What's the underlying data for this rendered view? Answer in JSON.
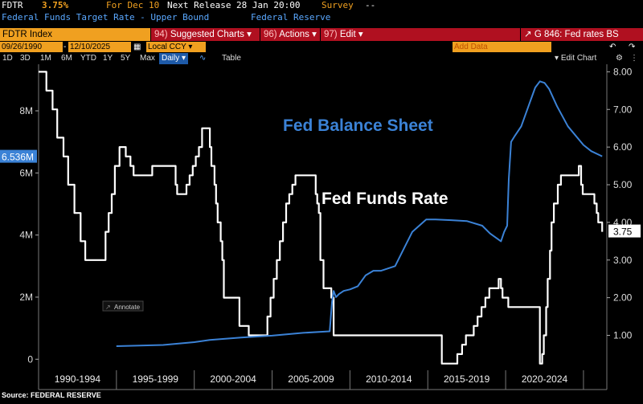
{
  "header": {
    "ticker": "FDTR",
    "last_value": "3.75%",
    "for_text": "For Dec 10",
    "next_release_label": "Next Release",
    "next_release_value": "28 Jan 20:00",
    "survey_label": "Survey",
    "survey_value": "--",
    "description": "Federal Funds Target Rate - Upper Bound",
    "source_name": "Federal Reserve"
  },
  "toolbar": {
    "security": "FDTR Index",
    "arrow": "▾",
    "suggested_num": "94)",
    "suggested_label": "Suggested Charts",
    "actions_num": "96)",
    "actions_label": "Actions",
    "edit_num": "97)",
    "edit_label": "Edit",
    "chart_id": "G 846: Fed rates BS",
    "start_date": "09/26/1990",
    "end_date": "12/10/2025",
    "currency": "Local CCY",
    "add_data_placeholder": "Add Data",
    "edit_chart": "Edit Chart",
    "periods": [
      "1D",
      "3D",
      "1M",
      "6M",
      "YTD",
      "1Y",
      "5Y",
      "Max"
    ],
    "frequency": "Daily",
    "table_label": "Table"
  },
  "colors": {
    "bs_line": "#3b82d6",
    "ffr_line": "#ffffff",
    "amber": "#f0a020",
    "red_bar": "#b01020",
    "bs_badge": "#3b82d6"
  },
  "chart_data": {
    "type": "line",
    "x_tick_labels": [
      "1990-1994",
      "1995-1999",
      "2000-2004",
      "2005-2009",
      "2010-2014",
      "2015-2019",
      "2020-2024"
    ],
    "x_range": [
      1990.0,
      2026.5
    ],
    "y_left": {
      "range": [
        -200000,
        9500000
      ],
      "ticks": [
        0,
        2000000,
        4000000,
        6000000,
        8000000
      ],
      "tick_labels": [
        "0",
        "2M",
        "4M",
        "6M",
        "8M"
      ]
    },
    "y_right": {
      "range": [
        0.2,
        8.2
      ],
      "ticks": [
        1,
        2,
        3,
        4,
        5,
        6,
        7,
        8
      ],
      "tick_labels": [
        "1.00",
        "2.00",
        "3.00",
        "4.00",
        "5.00",
        "6.00",
        "7.00",
        "8.00"
      ]
    },
    "grid": false,
    "annotations": {
      "bs_label": "Fed Balance Sheet",
      "ffr_label": "Fed Funds Rate",
      "annotate_button": "Annotate",
      "bs_current": "6.536M",
      "bs_current_value": 6536000,
      "ffr_current": "3.75",
      "ffr_current_value": 3.75
    },
    "series": [
      {
        "name": "Fed Funds Rate",
        "axis": "right",
        "step": true,
        "x": [
          1990.0,
          1990.5,
          1990.9,
          1991.2,
          1991.6,
          1991.9,
          1992.3,
          1992.7,
          1993.0,
          1994.1,
          1994.3,
          1994.5,
          1994.7,
          1994.9,
          1995.2,
          1995.6,
          1995.9,
          1996.1,
          1997.3,
          1998.8,
          1998.9,
          1999.0,
          1999.5,
          1999.7,
          1999.9,
          2000.1,
          2000.3,
          2000.5,
          2001.0,
          2001.1,
          2001.3,
          2001.4,
          2001.5,
          2001.7,
          2001.8,
          2001.9,
          2002.9,
          2003.5,
          2004.5,
          2004.7,
          2004.9,
          2005.1,
          2005.3,
          2005.5,
          2005.7,
          2005.9,
          2006.1,
          2006.3,
          2006.5,
          2007.7,
          2007.8,
          2007.9,
          2008.0,
          2008.1,
          2008.3,
          2008.8,
          2008.95,
          2015.9,
          2016.9,
          2017.2,
          2017.45,
          2017.95,
          2018.2,
          2018.45,
          2018.7,
          2018.95,
          2019.55,
          2019.7,
          2019.8,
          2020.17,
          2022.2,
          2022.35,
          2022.45,
          2022.6,
          2022.7,
          2022.85,
          2022.95,
          2023.1,
          2023.35,
          2023.55,
          2024.7,
          2024.85,
          2024.95,
          2025.7,
          2025.85,
          2025.95,
          2026.2
        ],
        "y": [
          8.0,
          7.5,
          7.0,
          6.25,
          5.75,
          5.0,
          4.25,
          3.5,
          3.0,
          3.0,
          3.75,
          4.25,
          4.75,
          5.5,
          6.0,
          5.75,
          5.5,
          5.25,
          5.5,
          5.0,
          4.75,
          4.75,
          5.0,
          5.25,
          5.5,
          5.75,
          6.0,
          6.5,
          6.0,
          5.5,
          5.0,
          4.5,
          4.0,
          3.5,
          3.0,
          2.0,
          1.25,
          1.0,
          1.0,
          1.5,
          2.0,
          2.5,
          3.0,
          3.5,
          4.0,
          4.5,
          4.75,
          5.0,
          5.25,
          5.25,
          4.75,
          4.5,
          4.25,
          3.0,
          2.25,
          2.0,
          1.0,
          0.25,
          0.5,
          0.75,
          1.0,
          1.25,
          1.5,
          1.75,
          2.0,
          2.25,
          2.5,
          2.25,
          2.0,
          1.75,
          0.25,
          0.5,
          1.0,
          1.75,
          2.5,
          3.25,
          4.0,
          4.5,
          5.0,
          5.25,
          5.5,
          5.0,
          4.75,
          4.5,
          4.25,
          4.0,
          3.75
        ]
      },
      {
        "name": "Fed Balance Sheet",
        "axis": "left",
        "x": [
          1995.0,
          1998.0,
          2000.0,
          2001.0,
          2003.0,
          2005.0,
          2007.0,
          2008.7,
          2008.85,
          2008.95,
          2009.1,
          2009.3,
          2009.6,
          2010.0,
          2010.5,
          2011.0,
          2011.5,
          2012.0,
          2012.9,
          2013.5,
          2014.0,
          2014.9,
          2015.5,
          2016.5,
          2017.5,
          2018.5,
          2019.0,
          2019.7,
          2019.9,
          2020.1,
          2020.2,
          2020.35,
          2020.6,
          2021.0,
          2021.5,
          2021.9,
          2022.2,
          2022.5,
          2022.8,
          2023.3,
          2024.0,
          2025.0,
          2025.5,
          2026.2
        ],
        "y": [
          420000,
          460000,
          550000,
          620000,
          700000,
          760000,
          850000,
          900000,
          1850000,
          2200000,
          2000000,
          2100000,
          2200000,
          2250000,
          2350000,
          2700000,
          2850000,
          2850000,
          3000000,
          3600000,
          4100000,
          4500000,
          4500000,
          4480000,
          4450000,
          4300000,
          4050000,
          3800000,
          4100000,
          4300000,
          5800000,
          7000000,
          7200000,
          7500000,
          8200000,
          8750000,
          8950000,
          8900000,
          8700000,
          8150000,
          7500000,
          6900000,
          6700000,
          6536000
        ]
      }
    ]
  },
  "footer": {
    "source": "Source: FEDERAL RESERVE"
  }
}
